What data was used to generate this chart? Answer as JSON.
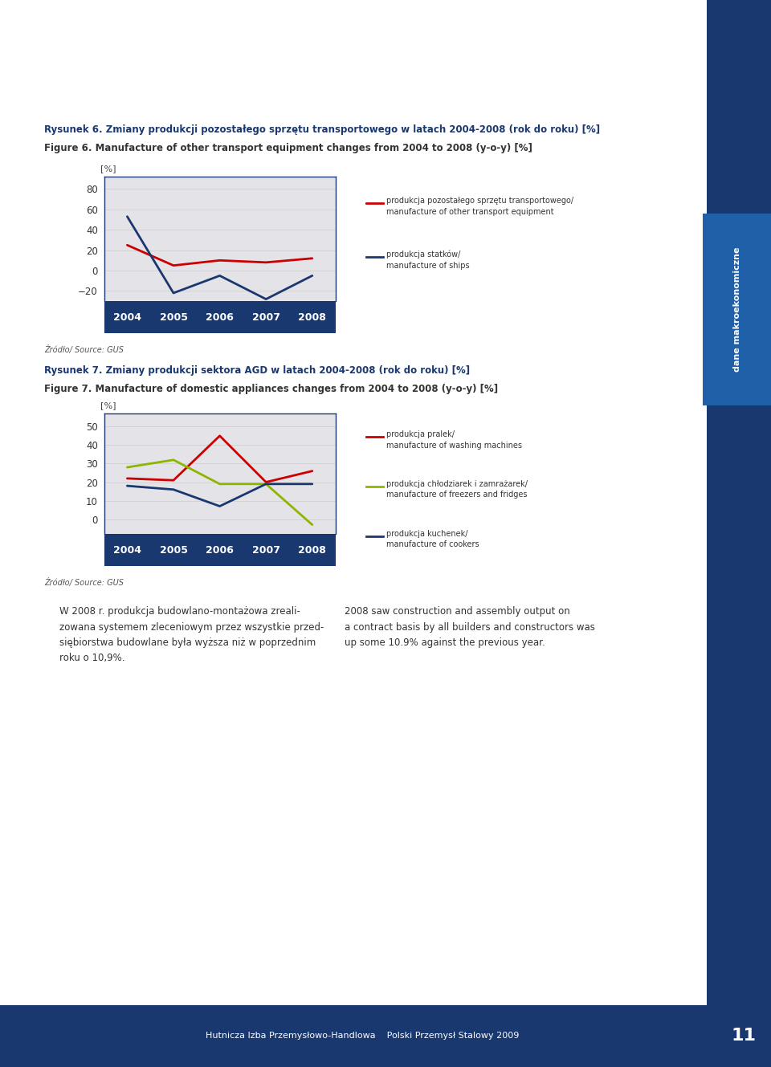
{
  "page_bg": "#ffffff",
  "sidebar_color": "#1a3870",
  "sidebar_text": "dane makroekonomiczne",
  "fig6_title_pl": "Rysunek 6. Zmiany produkcji pozostałego sprzętu transportowego w latach 2004-2008 (rok do roku) [%]",
  "fig6_title_en": "Figure 6. Manufacture of other transport equipment changes from 2004 to 2008 (y-o-y) [%]",
  "fig6_ylabel": "[%]",
  "fig6_years": [
    2004,
    2005,
    2006,
    2007,
    2008
  ],
  "fig6_series1_values": [
    25,
    5,
    10,
    8,
    12
  ],
  "fig6_series1_color": "#cc0000",
  "fig6_series1_label_pl": "produkcja pozostałego sprzętu transportowego/",
  "fig6_series1_label_en": "manufacture of other transport equipment",
  "fig6_series2_values": [
    53,
    -22,
    -5,
    -28,
    -5
  ],
  "fig6_series2_color": "#1a3870",
  "fig6_series2_label_pl": "produkcja statków/",
  "fig6_series2_label_en": "manufacture of ships",
  "fig6_yticks": [
    -20,
    0,
    20,
    40,
    60,
    80
  ],
  "fig6_ylim": [
    -30,
    92
  ],
  "fig6_source": "Źródło/ Source: GUS",
  "fig7_title_pl": "Rysunek 7. Zmiany produkcji sektora AGD w latach 2004-2008 (rok do roku) [%]",
  "fig7_title_en": "Figure 7. Manufacture of domestic appliances changes from 2004 to 2008 (y-o-y) [%]",
  "fig7_ylabel": "[%]",
  "fig7_years": [
    2004,
    2005,
    2006,
    2007,
    2008
  ],
  "fig7_series1_values": [
    22,
    21,
    45,
    20,
    26
  ],
  "fig7_series1_color": "#cc0000",
  "fig7_series1_label_pl": "produkcja pralek/",
  "fig7_series1_label_en": "manufacture of washing machines",
  "fig7_series2_values": [
    28,
    32,
    19,
    19,
    -3
  ],
  "fig7_series2_color": "#8db600",
  "fig7_series2_label_pl": "produkcja chłodziarek i zamrażarek/",
  "fig7_series2_label_en": "manufacture of freezers and fridges",
  "fig7_series3_values": [
    18,
    16,
    7,
    19,
    19
  ],
  "fig7_series3_color": "#1a3870",
  "fig7_series3_label_pl": "produkcja kuchenek/",
  "fig7_series3_label_en": "manufacture of cookers",
  "fig7_yticks": [
    0,
    10,
    20,
    30,
    40,
    50
  ],
  "fig7_ylim": [
    -8,
    57
  ],
  "fig7_source": "Źródło/ Source: GUS",
  "footer_left": "Hutnicza Izba Przemysłowo-Handlowa    Polski Przemysł Stalowy 2009",
  "footer_page": "11",
  "chart_bg": "#e4e4e8",
  "chart_border_color": "#1a3870",
  "xaxis_bg": "#1a3870",
  "xaxis_text_color": "#ffffff",
  "title_color_pl": "#1a3870",
  "title_color_en": "#333333"
}
